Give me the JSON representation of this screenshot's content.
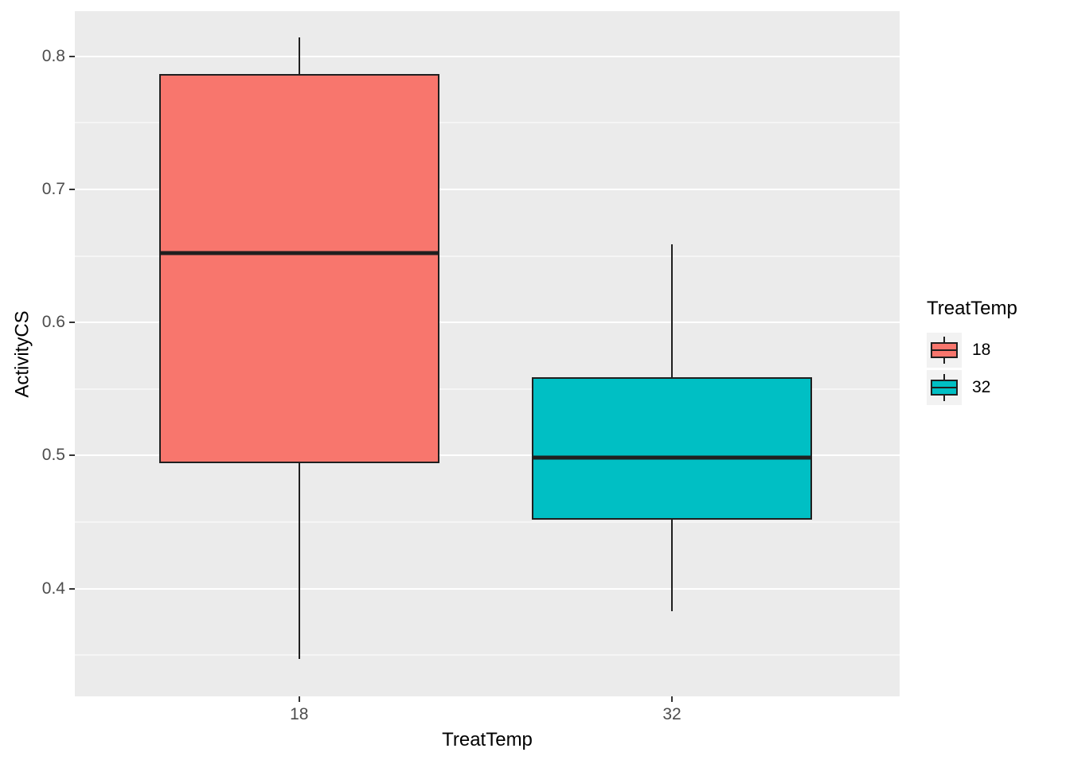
{
  "chart_data": {
    "type": "boxplot",
    "title": "",
    "xlabel": "TreatTemp",
    "ylabel": "ActivityCS",
    "legend_title": "TreatTemp",
    "legend_position": "right",
    "panel_background": "#EBEBEB",
    "grid_color": "#FFFFFF",
    "grid": true,
    "ylim": [
      0.319,
      0.834
    ],
    "y_major_ticks": [
      0.4,
      0.5,
      0.6,
      0.7,
      0.8
    ],
    "y_major_tick_labels": [
      "0.4",
      "0.5",
      "0.6",
      "0.7",
      "0.8"
    ],
    "y_minor_ticks": [
      0.35,
      0.45,
      0.55,
      0.65,
      0.75
    ],
    "categories": [
      "18",
      "32"
    ],
    "box_width_pct": 34,
    "series": [
      {
        "name": "18",
        "color": "#F8766D",
        "x_center_pct": 27.2,
        "min": 0.347,
        "q1": 0.494,
        "median": 0.652,
        "q3": 0.787,
        "max": 0.814
      },
      {
        "name": "32",
        "color": "#00BFC4",
        "x_center_pct": 72.4,
        "min": 0.383,
        "q1": 0.452,
        "median": 0.498,
        "q3": 0.559,
        "max": 0.659
      }
    ]
  }
}
